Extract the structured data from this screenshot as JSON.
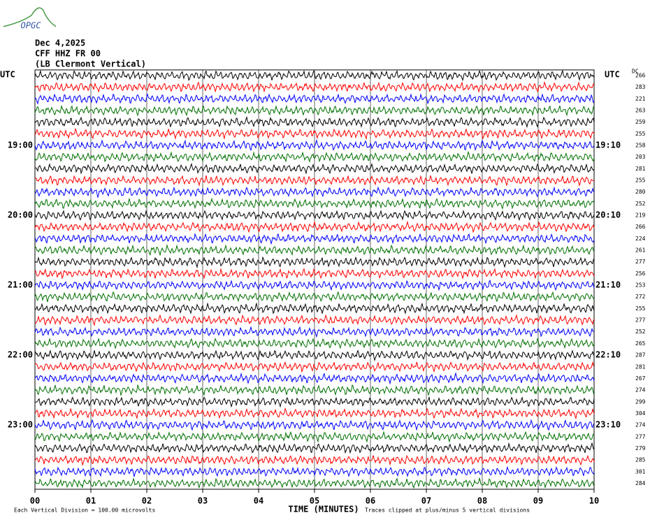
{
  "logo": "OPGC",
  "chart_data": {
    "type": "helicorder",
    "title_lines": [
      "Dec 4,2025",
      "CFF HHZ FR 00",
      "(LB  Clermont Vertical)"
    ],
    "left_header": "UTC",
    "right_header": "UTC",
    "dc_header": "DC",
    "x_label": "TIME (MINUTES)",
    "footer_left": "Each Vertical Division =  100.00 microvolts",
    "footer_right": "Traces clipped at plus/minus 5 vertical divisions",
    "xlim": [
      0,
      10
    ],
    "xticks": [
      {
        "value": 0,
        "label": "00"
      },
      {
        "value": 1,
        "label": "01"
      },
      {
        "value": 2,
        "label": "02"
      },
      {
        "value": 3,
        "label": "03"
      },
      {
        "value": 4,
        "label": "04"
      },
      {
        "value": 5,
        "label": "05"
      },
      {
        "value": 6,
        "label": "06"
      },
      {
        "value": 7,
        "label": "07"
      },
      {
        "value": 8,
        "label": "08"
      },
      {
        "value": 9,
        "label": "09"
      },
      {
        "value": 10,
        "label": "10"
      }
    ],
    "grid": true,
    "colors": [
      "#000000",
      "#ff0000",
      "#0000ff",
      "#007000"
    ],
    "row_labels_left": [
      null,
      null,
      null,
      null,
      null,
      null,
      "19:00",
      null,
      null,
      null,
      null,
      null,
      "20:00",
      null,
      null,
      null,
      null,
      null,
      "21:00",
      null,
      null,
      null,
      null,
      null,
      "22:00",
      null,
      null,
      null,
      null,
      null,
      "23:00",
      null,
      null,
      null,
      null,
      null
    ],
    "row_labels_right": [
      null,
      null,
      null,
      null,
      null,
      null,
      "19:10",
      null,
      null,
      null,
      null,
      null,
      "20:10",
      null,
      null,
      null,
      null,
      null,
      "21:10",
      null,
      null,
      null,
      null,
      null,
      "22:10",
      null,
      null,
      null,
      null,
      null,
      "23:10",
      null,
      null,
      null,
      null,
      null
    ],
    "dc_values": [
      266,
      283,
      221,
      263,
      259,
      255,
      258,
      203,
      281,
      255,
      280,
      252,
      219,
      266,
      224,
      261,
      277,
      256,
      253,
      272,
      255,
      277,
      252,
      265,
      287,
      281,
      267,
      274,
      299,
      304,
      274,
      277,
      279,
      285,
      301,
      284
    ]
  }
}
